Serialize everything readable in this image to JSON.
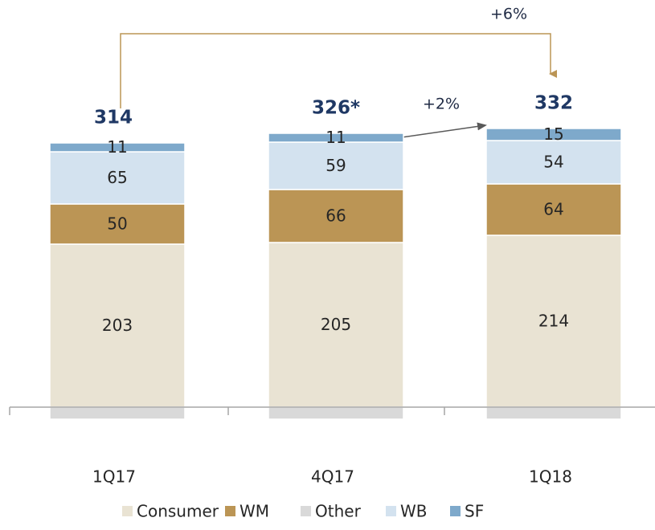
{
  "chart_data": {
    "type": "stacked_bar",
    "categories": [
      "1Q17",
      "4Q17",
      "1Q18"
    ],
    "series": [
      {
        "name": "Consumer",
        "color": "#e9e3d3",
        "values": [
          203,
          205,
          214
        ]
      },
      {
        "name": "WM",
        "color": "#bb9555",
        "values": [
          50,
          66,
          64
        ]
      },
      {
        "name": "Other",
        "color": "#d9d9d9",
        "values": [
          -15,
          -15,
          -15
        ]
      },
      {
        "name": "WB",
        "color": "#d3e2ef",
        "values": [
          65,
          59,
          54
        ]
      },
      {
        "name": "SF",
        "color": "#7ea9cb",
        "values": [
          11,
          11,
          15
        ]
      }
    ],
    "total_labels": [
      "314",
      "326*",
      "332"
    ],
    "annotations": [
      "+6%",
      "+2%"
    ],
    "legend": "bottom"
  }
}
